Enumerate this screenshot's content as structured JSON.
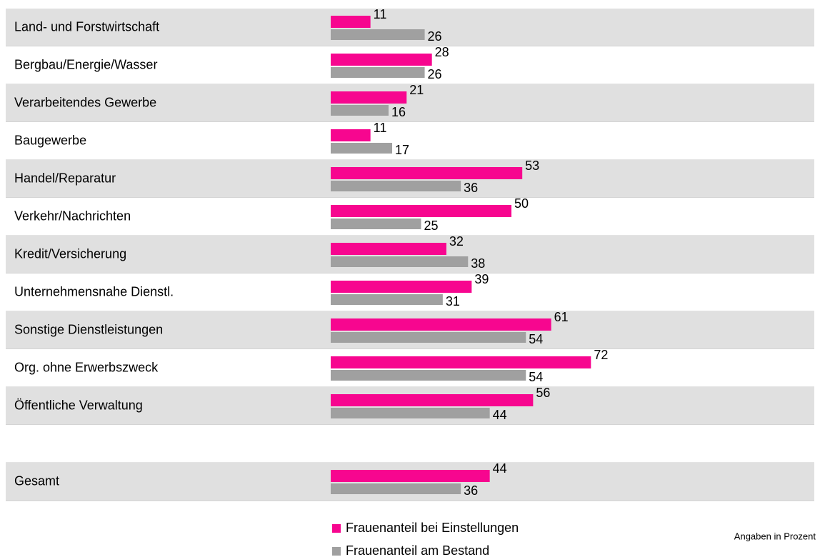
{
  "chart_data": {
    "type": "bar",
    "orientation": "horizontal",
    "categories": [
      "Land- und Forstwirtschaft",
      "Bergbau/Energie/Wasser",
      "Verarbeitendes Gewerbe",
      "Baugewerbe",
      "Handel/Reparatur",
      "Verkehr/Nachrichten",
      "Kredit/Versicherung",
      "Unternehmensnahe Dienstl.",
      "Sonstige Dienstleistungen",
      "Org. ohne Erwerbszweck",
      "Öffentliche Verwaltung",
      null,
      "Gesamt"
    ],
    "series": [
      {
        "name": "Frauenanteil bei  Einstellungen",
        "color": "#f7068f",
        "values": [
          11,
          28,
          21,
          11,
          53,
          50,
          32,
          39,
          61,
          72,
          56,
          null,
          44
        ]
      },
      {
        "name": "Frauenanteil am Bestand",
        "color": "#a0a0a0",
        "values": [
          26,
          26,
          16,
          17,
          36,
          25,
          38,
          31,
          54,
          54,
          44,
          null,
          36
        ]
      }
    ],
    "annotation": "Angaben in Prozent"
  }
}
